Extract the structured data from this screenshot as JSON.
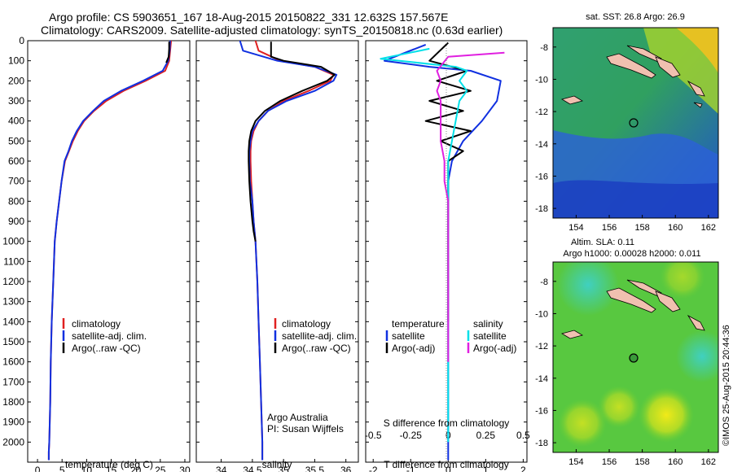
{
  "title": {
    "line1": "Argo profile: CS 5903651_167 18-Aug-2015 20150822_331 12.632S 157.567E",
    "line2": "Climatology: CARS2009. Satellite-adjusted climatology: synTS_20150818.nc (0.63d earlier)"
  },
  "colors": {
    "clim": "#e02020",
    "sat": "#1030e0",
    "argo": "#000000",
    "sal_sat": "#00e0e8",
    "sal_argo": "#e020e0"
  },
  "chart_data": [
    {
      "type": "line",
      "id": "temperature",
      "xlabel": "temperature (deg C)",
      "xlim": [
        -2,
        31
      ],
      "ylim": [
        0,
        2100
      ],
      "xticks": [
        "0",
        "5",
        "10",
        "15",
        "20",
        "25",
        "30"
      ],
      "yticks": [
        "0",
        "100",
        "200",
        "300",
        "400",
        "500",
        "600",
        "700",
        "800",
        "900",
        "1000",
        "1100",
        "1200",
        "1300",
        "1400",
        "1500",
        "1600",
        "1700",
        "1800",
        "1900",
        "2000"
      ],
      "legend": [
        "climatology",
        "satellite-adj. clim.",
        "Argo(..raw -QC)"
      ],
      "series": [
        {
          "name": "climatology",
          "color_key": "clim",
          "x": [
            27.2,
            27.0,
            26.8,
            26.0,
            22.0,
            17.5,
            14.0,
            11.5,
            9.5,
            8.2,
            7.2,
            6.4,
            5.6,
            4.9,
            4.4,
            3.9,
            3.5,
            3.2,
            2.9,
            2.7,
            2.6,
            2.5,
            2.4,
            2.3,
            2.3
          ],
          "y": [
            0,
            50,
            100,
            150,
            200,
            250,
            300,
            350,
            400,
            450,
            500,
            550,
            600,
            700,
            800,
            900,
            1000,
            1200,
            1400,
            1600,
            1800,
            1900,
            2000,
            2050,
            2090
          ]
        },
        {
          "name": "satellite-adj. clim.",
          "color_key": "sat",
          "x": [
            27.0,
            26.9,
            26.6,
            25.5,
            21.5,
            17.0,
            13.5,
            11.3,
            9.3,
            8.0,
            7.0,
            6.3,
            5.5,
            4.9,
            4.4,
            3.9,
            3.5,
            3.2,
            2.9,
            2.7,
            2.6,
            2.5,
            2.4,
            2.3,
            2.3
          ],
          "y": [
            0,
            50,
            100,
            150,
            200,
            250,
            300,
            350,
            400,
            450,
            500,
            550,
            600,
            700,
            800,
            900,
            1000,
            1200,
            1400,
            1600,
            1800,
            1900,
            2000,
            2050,
            2090
          ]
        },
        {
          "name": "Argo(..raw -QC)",
          "color_key": "argo",
          "x": [
            26.8,
            26.8,
            26.7,
            26.2
          ],
          "y": [
            5,
            40,
            80,
            110
          ]
        }
      ]
    },
    {
      "type": "line",
      "id": "salinity",
      "xlabel": "salinity",
      "xlim": [
        33.6,
        36.2
      ],
      "ylim": [
        0,
        2100
      ],
      "xticks": [
        "34",
        "34.5",
        "35",
        "35.5",
        "36"
      ],
      "legend": [
        "climatology",
        "satellite-adj. clim.",
        "Argo(..raw -QC)"
      ],
      "annotation": [
        "Argo Australia",
        "PI: Susan Wijffels"
      ],
      "series": [
        {
          "name": "climatology",
          "color_key": "clim",
          "x": [
            34.55,
            34.6,
            34.95,
            35.5,
            35.8,
            35.75,
            35.4,
            35.0,
            34.75,
            34.6,
            34.52,
            34.48,
            34.47,
            34.47,
            34.48,
            34.5,
            34.52,
            34.55,
            34.58,
            34.6,
            34.62,
            34.64,
            34.66,
            34.66
          ],
          "y": [
            0,
            50,
            100,
            130,
            170,
            200,
            250,
            300,
            350,
            400,
            450,
            500,
            550,
            600,
            700,
            800,
            900,
            1000,
            1200,
            1400,
            1600,
            1800,
            2000,
            2090
          ]
        },
        {
          "name": "satellite-adj. clim.",
          "color_key": "sat",
          "x": [
            34.3,
            34.35,
            34.9,
            35.5,
            35.85,
            35.8,
            35.5,
            35.05,
            34.75,
            34.6,
            34.5,
            34.47,
            34.45,
            34.45,
            34.46,
            34.5,
            34.52,
            34.55,
            34.58,
            34.6,
            34.62,
            34.64,
            34.66,
            34.66
          ],
          "y": [
            0,
            50,
            100,
            130,
            170,
            200,
            250,
            300,
            350,
            400,
            450,
            500,
            550,
            600,
            700,
            800,
            900,
            1000,
            1200,
            1400,
            1600,
            1800,
            2000,
            2090
          ]
        },
        {
          "name": "Argo(..raw -QC)",
          "color_key": "argo",
          "x": [
            34.8,
            34.8,
            35.0,
            35.6,
            35.82,
            35.7,
            35.3,
            34.95,
            34.7,
            34.55,
            34.48,
            34.45,
            34.44,
            34.44,
            34.45,
            34.47,
            34.5,
            34.52,
            34.55
          ],
          "y": [
            5,
            80,
            100,
            130,
            170,
            200,
            250,
            300,
            350,
            400,
            450,
            500,
            550,
            600,
            700,
            800,
            900,
            950,
            1000
          ]
        }
      ]
    },
    {
      "type": "line",
      "id": "differences",
      "xlabel_top": "S difference from climatology",
      "xlabel": "T difference from climatology",
      "s_ticks": [
        "-0.5",
        "-0.25",
        "0",
        "0.25",
        "0.5"
      ],
      "xticks": [
        "-2",
        "-1",
        "0",
        "1",
        "2"
      ],
      "xlim": [
        -2.2,
        2.1
      ],
      "ylim": [
        0,
        2100
      ],
      "legend_temperature": {
        "heading": "temperature",
        "items": [
          "satellite",
          "Argo(-adj)"
        ]
      },
      "legend_salinity": {
        "heading": "salinity",
        "items": [
          "satellite",
          "Argo(-adj)"
        ]
      },
      "series": [
        {
          "name": "T satellite",
          "color_key": "sat",
          "x": [
            -0.6,
            -1.7,
            -0.5,
            0.6,
            1.4,
            1.3,
            0.9,
            0.4,
            0.1,
            0.0,
            0.0,
            0.0,
            0.0,
            0.0,
            0.0,
            0.0
          ],
          "y": [
            20,
            100,
            130,
            150,
            200,
            300,
            400,
            500,
            600,
            700,
            800,
            1000,
            1300,
            1600,
            1900,
            2090
          ]
        },
        {
          "name": "T Argo(-adj)",
          "color_key": "argo",
          "x": [
            0.0,
            -0.5,
            0.5,
            -0.3,
            0.6,
            -0.5,
            0.4,
            -0.6,
            0.6,
            -0.2,
            0.4,
            0.0,
            0.0,
            0.0,
            0.0,
            0.0
          ],
          "y": [
            10,
            100,
            150,
            200,
            250,
            300,
            350,
            400,
            450,
            500,
            550,
            600,
            800,
            1000,
            1200,
            1400
          ]
        },
        {
          "name": "S satellite",
          "color_key": "sal_sat",
          "x": [
            -0.5,
            -1.8,
            0.2,
            0.5,
            0.3,
            0.5,
            0.3,
            0.2,
            0.1,
            0.0,
            0.0,
            0.0,
            0.0,
            0.0,
            0.0,
            0.0
          ],
          "y": [
            40,
            90,
            130,
            150,
            200,
            250,
            300,
            400,
            500,
            600,
            700,
            800,
            1000,
            1300,
            1600,
            2000
          ]
        },
        {
          "name": "S Argo(-adj)",
          "color_key": "sal_argo",
          "x": [
            1.5,
            0.0,
            -0.3,
            -0.2,
            -0.3,
            -0.2,
            -0.2,
            -0.2,
            -0.1,
            -0.1,
            0.0,
            0.0,
            0.0,
            0.0,
            0.0
          ],
          "y": [
            60,
            80,
            150,
            200,
            250,
            300,
            400,
            500,
            600,
            700,
            800,
            900,
            1000,
            1300,
            1600
          ]
        }
      ]
    },
    {
      "type": "heatmap",
      "id": "sst_map",
      "title": "sat. SST: 26.8 Argo: 26.9",
      "xticks": [
        "154",
        "156",
        "158",
        "160",
        "162"
      ],
      "yticks": [
        "-8",
        "-10",
        "-12",
        "-14",
        "-16",
        "-18"
      ],
      "xlim": [
        152.6,
        162.6
      ],
      "ylim": [
        -18.6,
        -6.8
      ],
      "float_position": [
        157.567,
        -12.632
      ]
    },
    {
      "type": "heatmap",
      "id": "sla_map",
      "title_line1": "Altim. SLA: 0.11",
      "title_line2": "Argo h1000: 0.00028 h2000: 0.011",
      "xticks": [
        "154",
        "156",
        "158",
        "160",
        "162"
      ],
      "yticks": [
        "-8",
        "-10",
        "-12",
        "-14",
        "-16",
        "-18"
      ],
      "xlim": [
        152.6,
        162.6
      ],
      "ylim": [
        -18.6,
        -6.8
      ],
      "float_position": [
        157.567,
        -12.632
      ]
    }
  ],
  "credit": "©IMOS 25-Aug-2015 20:44:36"
}
